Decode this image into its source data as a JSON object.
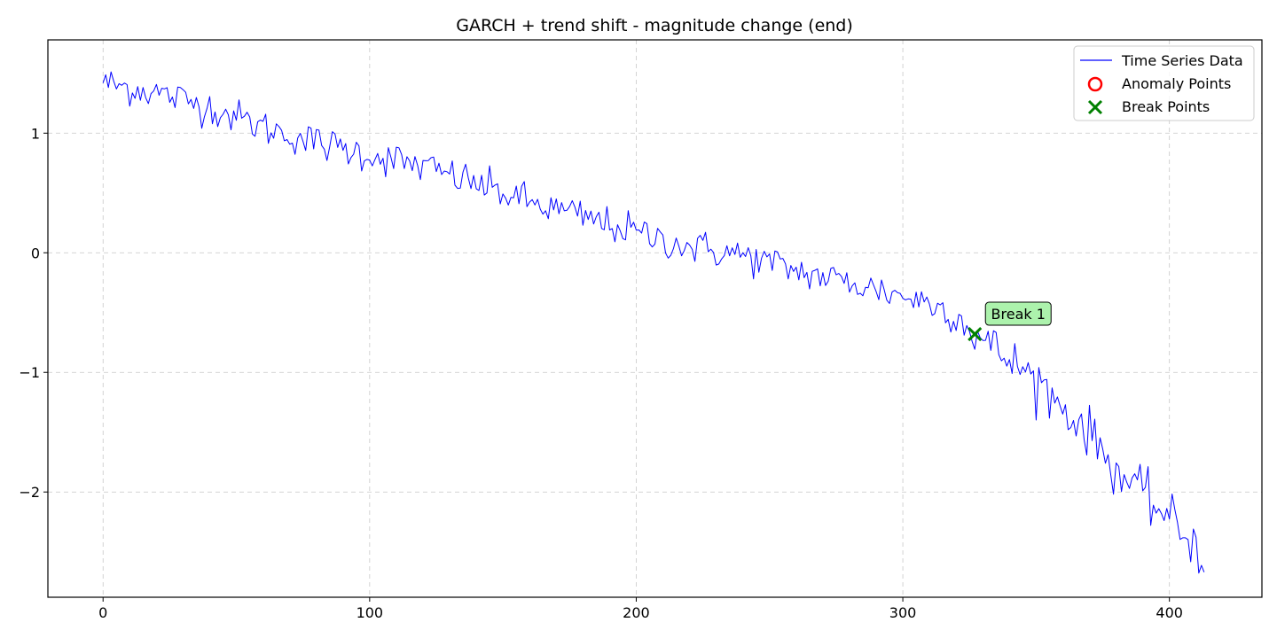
{
  "chart_data": {
    "type": "line",
    "title": "GARCH + trend shift - magnitude change (end)",
    "xlabel": "",
    "ylabel": "",
    "xlim": [
      -20.7,
      434.7
    ],
    "ylim": [
      -2.88,
      1.78
    ],
    "x_ticks": [
      0,
      100,
      200,
      300,
      400
    ],
    "y_ticks": [
      1,
      0,
      -1,
      -2
    ],
    "x_tick_labels": [
      "0",
      "100",
      "200",
      "300",
      "400"
    ],
    "y_tick_labels": [
      "1",
      "0",
      "−1",
      "−2"
    ],
    "grid": true,
    "legend": {
      "placement": "top-right",
      "entries": [
        "Time Series Data",
        "Anomaly Points",
        "Break Points"
      ]
    },
    "series": [
      {
        "name": "Time Series Data",
        "color": "#0000ff",
        "n_points": 414,
        "x_start": 0,
        "trend_anchors": [
          [
            0,
            1.42
          ],
          [
            20,
            1.34
          ],
          [
            40,
            1.22
          ],
          [
            60,
            1.05
          ],
          [
            80,
            0.92
          ],
          [
            100,
            0.82
          ],
          [
            120,
            0.72
          ],
          [
            140,
            0.58
          ],
          [
            160,
            0.42
          ],
          [
            180,
            0.3
          ],
          [
            200,
            0.17
          ],
          [
            220,
            0.05
          ],
          [
            240,
            -0.02
          ],
          [
            260,
            -0.15
          ],
          [
            280,
            -0.25
          ],
          [
            300,
            -0.36
          ],
          [
            310,
            -0.42
          ],
          [
            320,
            -0.52
          ],
          [
            327,
            -0.68
          ],
          [
            340,
            -0.9
          ],
          [
            350,
            -1.05
          ],
          [
            360,
            -1.3
          ],
          [
            370,
            -1.5
          ],
          [
            380,
            -1.82
          ],
          [
            390,
            -2.02
          ],
          [
            400,
            -2.22
          ],
          [
            410,
            -2.45
          ],
          [
            413,
            -2.67
          ]
        ],
        "end_value": -2.67
      }
    ],
    "anomaly_points": {
      "name": "Anomaly Points",
      "color": "#ff0000",
      "points": []
    },
    "break_points": {
      "name": "Break Points",
      "color": "#008000",
      "points": [
        {
          "x": 327,
          "y": -0.68,
          "label": "Break 1"
        }
      ]
    }
  }
}
